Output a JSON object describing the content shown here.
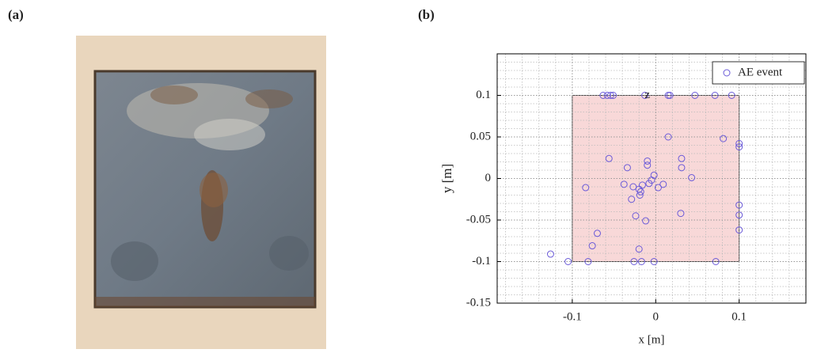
{
  "panel_labels": [
    "(a)",
    "(b)"
  ],
  "chart_data": {
    "type": "scatter",
    "xlabel": "x [m]",
    "ylabel": "y [m]",
    "xlim": [
      -0.19,
      0.18
    ],
    "ylim": [
      -0.15,
      0.15
    ],
    "xticks": [
      -0.1,
      0,
      0.1
    ],
    "yticks": [
      -0.15,
      -0.1,
      -0.05,
      0,
      0.05,
      0.1
    ],
    "grid": true,
    "legend": "upper right",
    "region": {
      "x": [
        -0.1,
        0.1
      ],
      "y": [
        -0.1,
        0.1
      ],
      "color": "#f8d8d8"
    },
    "annotations": [
      {
        "text": "z",
        "x": -0.01,
        "y": 0.1
      }
    ],
    "series": [
      {
        "name": "AE event",
        "color": "#6a5ad8",
        "x": [
          -0.063,
          -0.058,
          -0.054,
          -0.051,
          -0.013,
          0.015,
          0.017,
          0.047,
          0.071,
          0.091,
          0.015,
          0.081,
          0.1,
          0.1,
          -0.056,
          -0.01,
          -0.01,
          0.031,
          0.031,
          -0.034,
          -0.084,
          -0.038,
          -0.027,
          -0.02,
          -0.018,
          -0.019,
          -0.005,
          -0.002,
          -0.008,
          -0.016,
          0.003,
          0.009,
          0.043,
          -0.029,
          -0.024,
          -0.012,
          0.03,
          0.1,
          0.1,
          0.1,
          -0.07,
          -0.076,
          -0.02,
          -0.126,
          -0.105,
          -0.081,
          -0.026,
          -0.017,
          -0.002,
          0.072
        ],
        "values": [
          0.1,
          0.1,
          0.1,
          0.1,
          0.1,
          0.1,
          0.1,
          0.1,
          0.1,
          0.1,
          0.05,
          0.048,
          0.042,
          0.038,
          0.024,
          0.021,
          0.016,
          0.024,
          0.013,
          0.013,
          -0.011,
          -0.007,
          -0.01,
          -0.013,
          -0.016,
          -0.02,
          -0.002,
          0.004,
          -0.006,
          -0.008,
          -0.011,
          -0.007,
          0.001,
          -0.025,
          -0.045,
          -0.051,
          -0.042,
          -0.032,
          -0.044,
          -0.062,
          -0.066,
          -0.081,
          -0.085,
          -0.091,
          -0.1,
          -0.1,
          -0.1,
          -0.1,
          -0.1,
          -0.1
        ]
      }
    ]
  }
}
